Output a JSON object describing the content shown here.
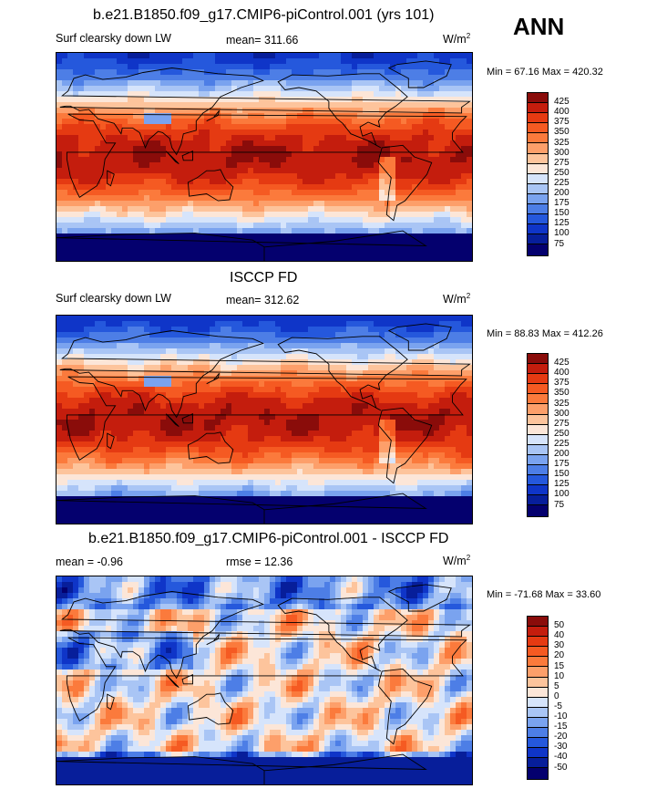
{
  "header": {
    "ann_label": "ANN"
  },
  "chart_data": [
    {
      "type": "heatmap",
      "title": "b.e21.B1850.f09_g17.CMIP6-piControl.001 (yrs 101)",
      "left_label": "Surf clearsky down LW",
      "mean_text": "mean= 311.66",
      "units": "W/m",
      "units_sup": "2",
      "minmax_text": "Min =  67.16 Max = 420.32",
      "colorbar": {
        "ticks": [
          "425",
          "400",
          "375",
          "350",
          "325",
          "300",
          "275",
          "250",
          "225",
          "200",
          "175",
          "150",
          "125",
          "100",
          "75"
        ],
        "colors": [
          "#8a0c0a",
          "#c41d0d",
          "#e53a12",
          "#f55a22",
          "#fb7a3c",
          "#fd9f6a",
          "#fdc49c",
          "#fce6d8",
          "#d6e4fb",
          "#a9c5f5",
          "#7aa3ef",
          "#4d7ee6",
          "#2558dc",
          "#0f35c8",
          "#071e9a",
          "#04006e"
        ]
      },
      "pattern": "model",
      "pattern_values": {
        "tropics": 410,
        "midlat": 300,
        "polar": 170,
        "antarctic": 80
      }
    },
    {
      "type": "heatmap",
      "title": "ISCCP FD",
      "left_label": "Surf clearsky down LW",
      "mean_text": "mean= 312.62",
      "units": "W/m",
      "units_sup": "2",
      "minmax_text": "Min =  88.83 Max = 412.26",
      "colorbar": {
        "ticks": [
          "425",
          "400",
          "375",
          "350",
          "325",
          "300",
          "275",
          "250",
          "225",
          "200",
          "175",
          "150",
          "125",
          "100",
          "75"
        ],
        "colors": [
          "#8a0c0a",
          "#c41d0d",
          "#e53a12",
          "#f55a22",
          "#fb7a3c",
          "#fd9f6a",
          "#fdc49c",
          "#fce6d8",
          "#d6e4fb",
          "#a9c5f5",
          "#7aa3ef",
          "#4d7ee6",
          "#2558dc",
          "#0f35c8",
          "#071e9a",
          "#04006e"
        ]
      },
      "pattern": "obs",
      "pattern_values": {
        "tropics": 405,
        "midlat": 300,
        "polar": 180,
        "antarctic": 95
      }
    },
    {
      "type": "heatmap",
      "title": "b.e21.B1850.f09_g17.CMIP6-piControl.001 - ISCCP FD",
      "left_label": "mean =  -0.96",
      "mean_text": "rmse =  12.36",
      "units": "W/m",
      "units_sup": "2",
      "minmax_text": "Min = -71.68 Max =  33.60",
      "colorbar": {
        "ticks": [
          "50",
          "40",
          "30",
          "20",
          "15",
          "10",
          "5",
          "0",
          "-5",
          "-10",
          "-15",
          "-20",
          "-30",
          "-40",
          "-50"
        ],
        "colors": [
          "#8a0c0a",
          "#c41d0d",
          "#e53a12",
          "#f55a22",
          "#fb7a3c",
          "#fd9f6a",
          "#fdc49c",
          "#fce6d8",
          "#d6e4fb",
          "#a9c5f5",
          "#7aa3ef",
          "#4d7ee6",
          "#2558dc",
          "#0f35c8",
          "#071e9a",
          "#04006e"
        ]
      },
      "pattern": "diff",
      "pattern_values": {
        "min": -71.68,
        "max": 33.6
      }
    }
  ]
}
